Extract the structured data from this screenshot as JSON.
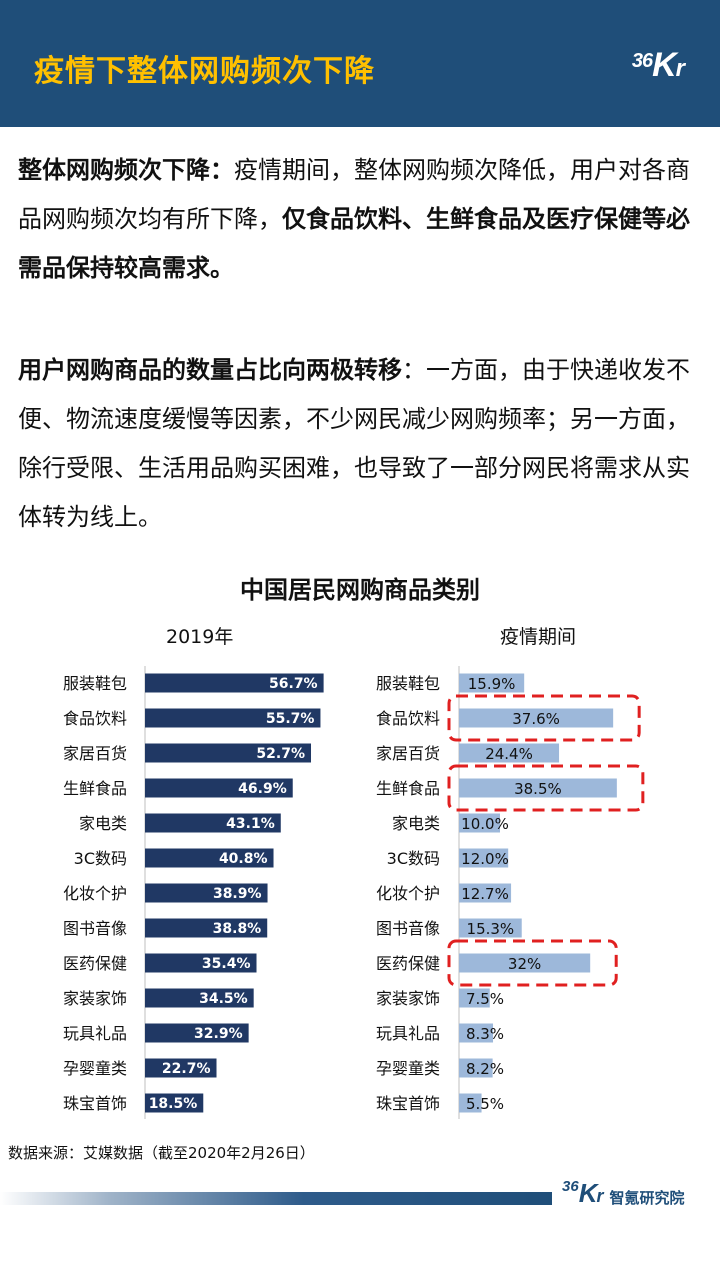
{
  "header": {
    "title": "疫情下整体网购频次下降",
    "logo": {
      "num": "36",
      "k": "K",
      "r": "r"
    }
  },
  "para1": {
    "bold1": "整体网购频次下降：",
    "text1": "疫情期间，整体网购频次降低，用户对各商品网购频次均有所下降，",
    "bold2": "仅食品饮料、生鲜食品及医疗保健等必需品保持较高需求。"
  },
  "para2": {
    "bold1": "用户网购商品的数量占比向两极转移",
    "text1": "：一方面，由于快递收发不便、物流速度缓慢等因素，不少网民减少网购频率；另一方面，除行受限、生活用品购买困难，也导致了一部分网民将需求从实体转为线上。"
  },
  "chart_data": [
    {
      "type": "bar",
      "orientation": "horizontal",
      "title": "中国居民网购商品类别",
      "subtitle": "2019年",
      "categories": [
        "服装鞋包",
        "食品饮料",
        "家居百货",
        "生鲜食品",
        "家电类",
        "3C数码",
        "化妆个护",
        "图书音像",
        "医药保健",
        "家装家饰",
        "玩具礼品",
        "孕婴童类",
        "珠宝首饰"
      ],
      "values": [
        56.7,
        55.7,
        52.7,
        46.9,
        43.1,
        40.8,
        38.9,
        38.8,
        35.4,
        34.5,
        32.9,
        22.7,
        18.5
      ],
      "labels": [
        "56.7%",
        "55.7%",
        "52.7%",
        "46.9%",
        "43.1%",
        "40.8%",
        "38.9%",
        "38.8%",
        "35.4%",
        "34.5%",
        "32.9%",
        "22.7%",
        "18.5%"
      ],
      "xlim": [
        0,
        60
      ],
      "bar_color": "#203864",
      "label_color": "#ffffff",
      "grid": false
    },
    {
      "type": "bar",
      "orientation": "horizontal",
      "subtitle": "疫情期间",
      "categories": [
        "服装鞋包",
        "食品饮料",
        "家居百货",
        "生鲜食品",
        "家电类",
        "3C数码",
        "化妆个护",
        "图书音像",
        "医药保健",
        "家装家饰",
        "玩具礼品",
        "孕婴童类",
        "珠宝首饰"
      ],
      "values": [
        15.9,
        37.6,
        24.4,
        38.5,
        10.0,
        12.0,
        12.7,
        15.3,
        32,
        7.5,
        8.3,
        8.2,
        5.5
      ],
      "labels": [
        "15.9%",
        "37.6%",
        "24.4%",
        "38.5%",
        "10.0%",
        "12.0%",
        "12.7%",
        "15.3%",
        "32%",
        "7.5%",
        "8.3%",
        "8.2%",
        "5.5%"
      ],
      "xlim": [
        0,
        40
      ],
      "bar_color": "#9db8da",
      "label_color": "#111111",
      "highlighted": [
        "食品饮料",
        "生鲜食品",
        "医药保健"
      ],
      "highlight_color": "#e02020",
      "grid": false
    }
  ],
  "source": "数据来源：艾媒数据（截至2020年2月26日）",
  "footer": {
    "num": "36",
    "k": "K",
    "r": "r",
    "institute": "智氪研究院"
  }
}
